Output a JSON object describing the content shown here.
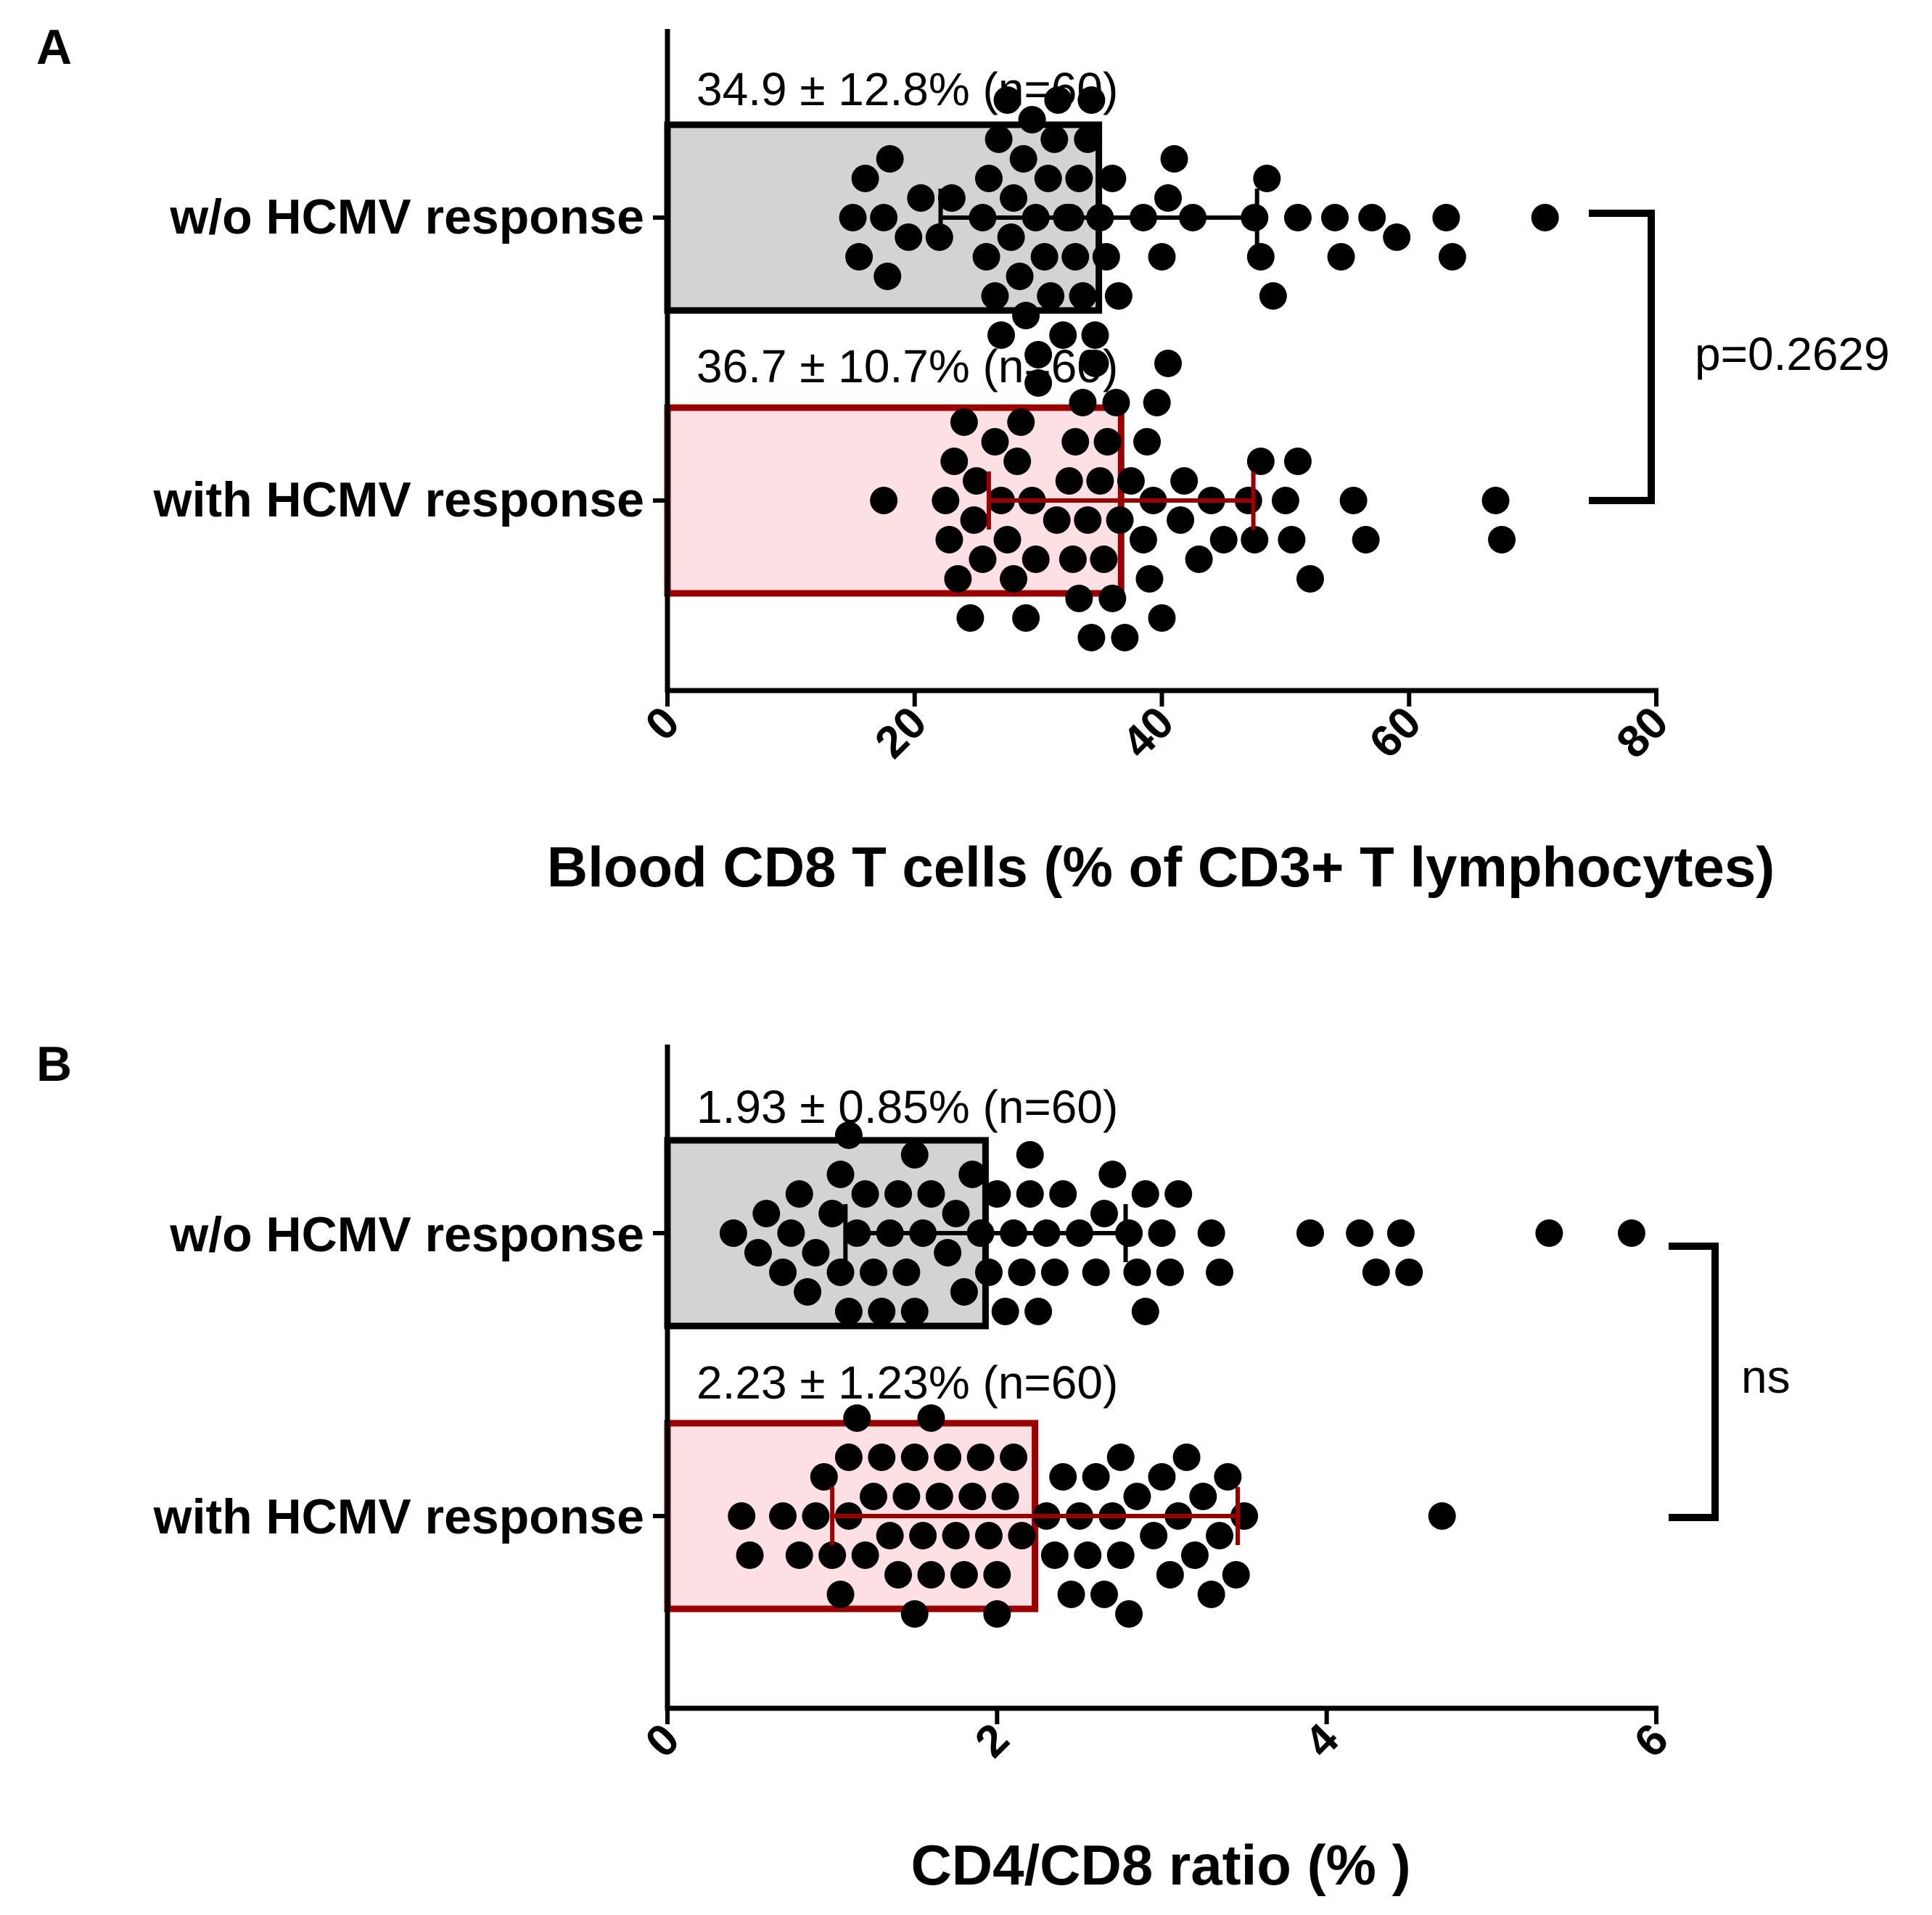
{
  "colors": {
    "group1_fill": "#d3d3d3",
    "group1_stroke": "#000000",
    "group2_fill": "#fde0e3",
    "group2_stroke": "#9b0000",
    "dot": "#000000"
  },
  "chart_data": [
    {
      "type": "bar",
      "panel": "A",
      "orientation": "horizontal",
      "xlabel": "Blood CD8 T cells (% of CD3+ T lymphocytes)",
      "xlim": [
        0,
        80
      ],
      "xticks": [
        0,
        20,
        40,
        60,
        80
      ],
      "series": [
        {
          "name": "w/o HCMV response",
          "mean": 34.9,
          "sd": 12.8,
          "n": 60,
          "annotation": "34.9 ± 12.8% (n=60)",
          "values": [
            15,
            15.5,
            16,
            17.5,
            17.8,
            18,
            19.5,
            20.5,
            22,
            23,
            25.5,
            25.8,
            26,
            26.5,
            26.8,
            27,
            27.5,
            27.8,
            28,
            28.5,
            28.8,
            29,
            29.5,
            29.8,
            30,
            30.5,
            30.8,
            31,
            31.3,
            31.6,
            32,
            32.3,
            32.6,
            33,
            33.3,
            33.6,
            34,
            34.3,
            34.6,
            35,
            35.5,
            36,
            36.5,
            38.5,
            40,
            40.5,
            41,
            42.5,
            47.5,
            48,
            48.5,
            49,
            51,
            54,
            54.5,
            57,
            59,
            63,
            63.5,
            71
          ]
        },
        {
          "name": "with HCMV response",
          "mean": 36.7,
          "sd": 10.7,
          "n": 60,
          "annotation": "36.7 ± 10.7% (n=60)",
          "values": [
            17.5,
            22.5,
            22.8,
            23.2,
            23.5,
            24,
            24.5,
            24.8,
            25,
            25.5,
            27,
            27.5,
            28,
            28.3,
            28.6,
            29,
            29.5,
            29.8,
            30,
            32.5,
            32.8,
            33,
            33.3,
            33.6,
            34,
            34.3,
            34.6,
            35,
            35.3,
            35.6,
            36,
            36.3,
            36.6,
            37,
            37.5,
            38.5,
            38.8,
            39,
            39.3,
            39.6,
            40,
            40.5,
            41.5,
            41.8,
            44,
            45,
            47,
            47.5,
            48,
            50,
            50.5,
            51,
            52,
            55.5,
            56.5,
            67,
            67.5,
            31.5,
            26.5,
            43
          ]
        }
      ],
      "comparison": "p=0.2629"
    },
    {
      "type": "bar",
      "panel": "B",
      "orientation": "horizontal",
      "xlabel": "CD4/CD8 ratio (% )",
      "xlim": [
        0,
        6
      ],
      "xticks": [
        0,
        2,
        4,
        6
      ],
      "series": [
        {
          "name": "w/o HCMV response",
          "mean": 1.93,
          "sd": 0.85,
          "n": 60,
          "annotation": "1.93 ± 0.85% (n=60)",
          "values": [
            0.4,
            0.55,
            0.6,
            0.7,
            0.75,
            0.8,
            0.85,
            0.9,
            1.0,
            1.05,
            1.05,
            1.1,
            1.1,
            1.15,
            1.2,
            1.25,
            1.3,
            1.35,
            1.4,
            1.45,
            1.5,
            1.5,
            1.55,
            1.6,
            1.7,
            1.75,
            1.8,
            1.85,
            1.9,
            1.95,
            2.0,
            2.05,
            2.1,
            2.15,
            2.2,
            2.2,
            2.25,
            2.3,
            2.35,
            2.4,
            2.5,
            2.6,
            2.65,
            2.7,
            2.8,
            2.85,
            2.9,
            2.9,
            3.0,
            3.05,
            3.1,
            3.3,
            3.35,
            3.9,
            4.2,
            4.3,
            4.45,
            4.5,
            5.35,
            5.85
          ]
        },
        {
          "name": "with HCMV response",
          "mean": 2.23,
          "sd": 1.23,
          "n": 60,
          "annotation": "2.23 ± 1.23% (n=60)",
          "values": [
            0.45,
            0.5,
            0.7,
            0.8,
            0.9,
            0.95,
            1.0,
            1.05,
            1.1,
            1.15,
            1.2,
            1.25,
            1.3,
            1.35,
            1.4,
            1.45,
            1.5,
            1.5,
            1.55,
            1.6,
            1.65,
            1.7,
            1.75,
            1.8,
            1.85,
            1.9,
            1.95,
            2.0,
            2.0,
            2.05,
            2.1,
            2.15,
            2.35,
            2.4,
            2.45,
            2.5,
            2.55,
            2.6,
            2.65,
            2.7,
            2.75,
            2.8,
            2.85,
            2.95,
            3.0,
            3.05,
            3.1,
            3.15,
            3.2,
            3.25,
            3.3,
            3.35,
            3.4,
            3.45,
            3.5,
            1.1,
            1.6,
            2.3,
            2.75,
            4.7
          ]
        }
      ],
      "comparison": "ns"
    }
  ]
}
